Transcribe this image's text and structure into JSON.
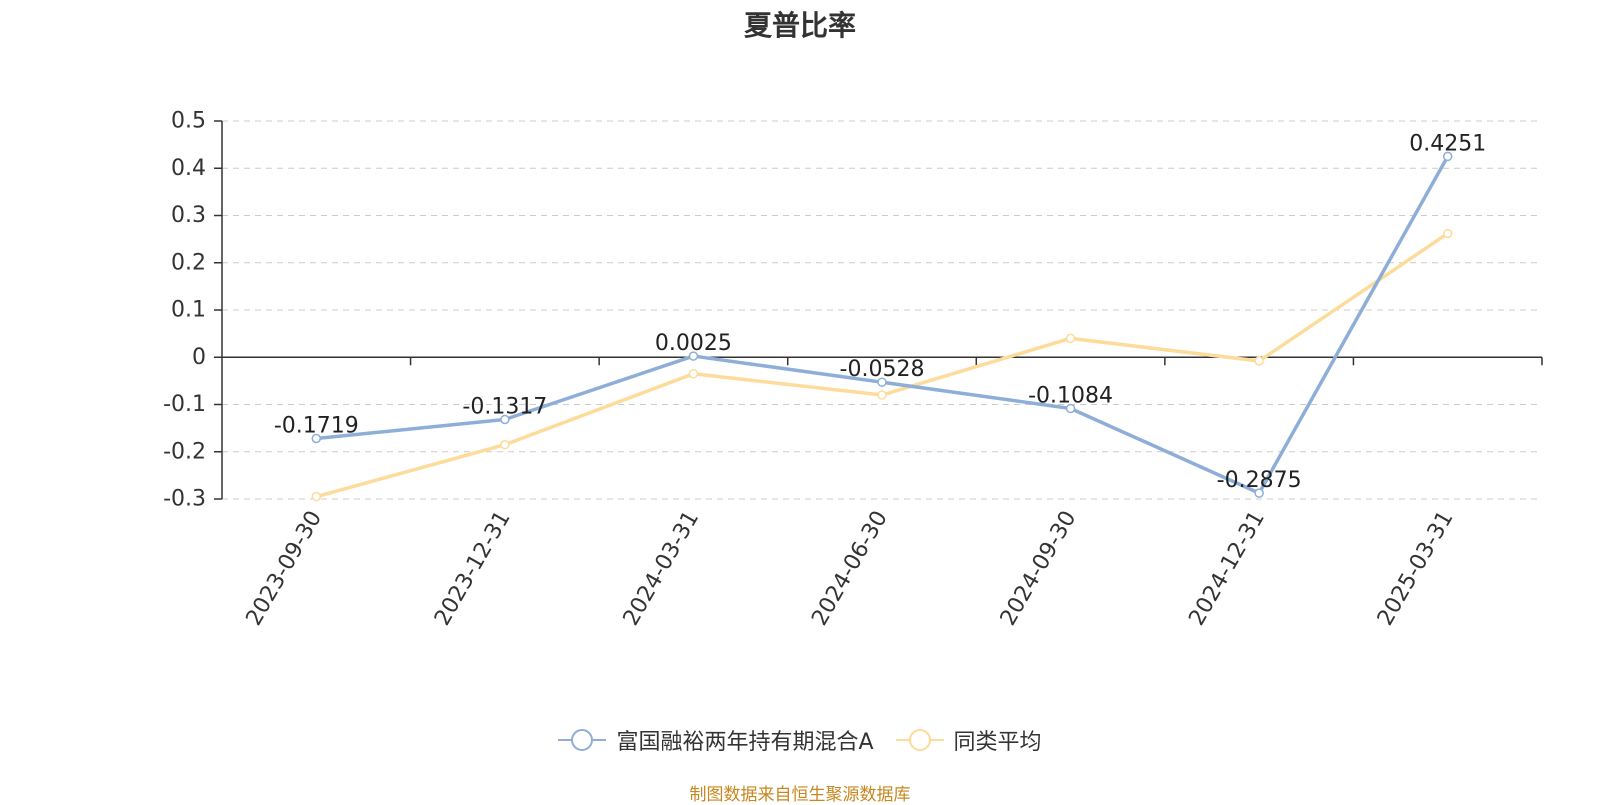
{
  "chart_data": {
    "type": "line",
    "title": "夏普比率",
    "categories": [
      "2023-09-30",
      "2023-12-31",
      "2024-03-31",
      "2024-06-30",
      "2024-09-30",
      "2024-12-31",
      "2025-03-31"
    ],
    "series": [
      {
        "name": "富国融裕两年持有期混合A",
        "color": "#8eaed8",
        "values": [
          -0.1719,
          -0.1317,
          0.0025,
          -0.0528,
          -0.1084,
          -0.2875,
          0.4251
        ],
        "labels": [
          "-0.1719",
          "-0.1317",
          "0.0025",
          "-0.0528",
          "-0.1084",
          "-0.2875",
          "0.4251"
        ]
      },
      {
        "name": "同类平均",
        "color": "#fddb9b",
        "values": [
          -0.295,
          -0.185,
          -0.035,
          -0.08,
          0.04,
          -0.008,
          0.262
        ]
      }
    ],
    "ylim": [
      -0.3,
      0.5
    ],
    "yticks": [
      0.5,
      0.4,
      0.3,
      0.2,
      0.1,
      0,
      -0.1,
      -0.2,
      -0.3
    ],
    "ytick_labels": [
      "0.5",
      "0.4",
      "0.3",
      "0.2",
      "0.1",
      "0",
      "-0.1",
      "-0.2",
      "-0.3"
    ],
    "grid": true,
    "legend": "bottom-center"
  },
  "source_note": "制图数据来自恒生聚源数据库"
}
